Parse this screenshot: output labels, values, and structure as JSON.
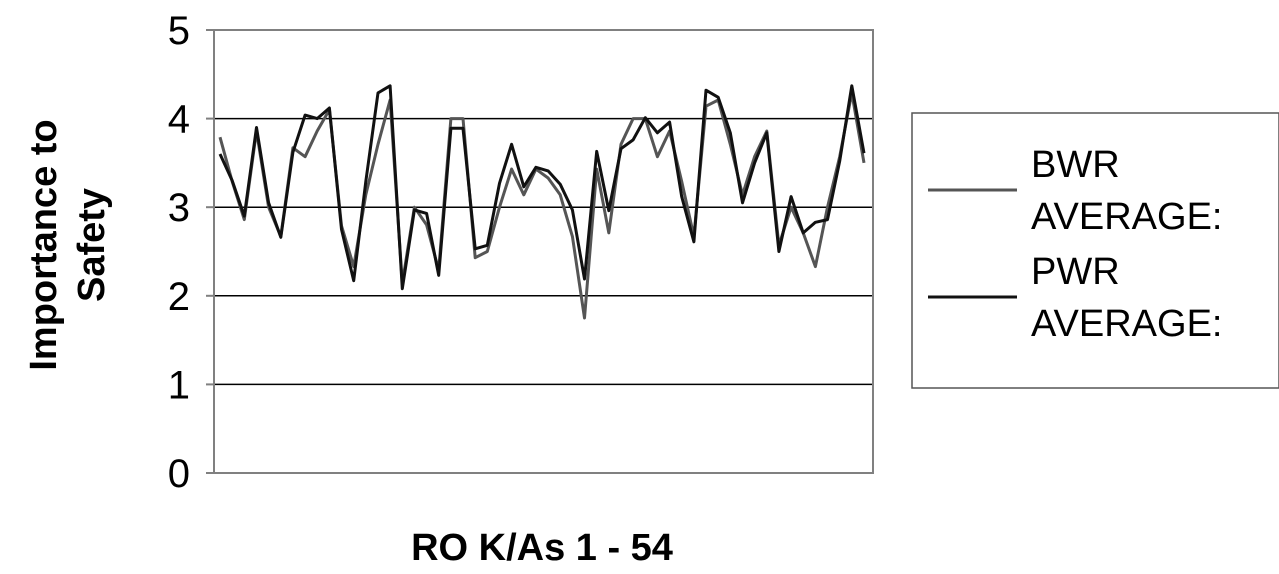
{
  "chart_data": {
    "type": "line",
    "title": "",
    "xlabel": "RO K/As 1 - 54",
    "ylabel_lines": [
      "Importance to",
      "Safety"
    ],
    "ylim": [
      0,
      5
    ],
    "yticks": [
      "0",
      "1",
      "2",
      "3",
      "4",
      "5"
    ],
    "grid": "horizontal",
    "legend_position": "right",
    "series": [
      {
        "name_lines": [
          "BWR",
          "AVERAGE:"
        ],
        "color": "#555555",
        "values": [
          3.79,
          3.29,
          2.86,
          3.86,
          3.0,
          2.67,
          3.67,
          3.57,
          3.86,
          4.1,
          2.79,
          2.33,
          3.14,
          3.71,
          4.21,
          2.14,
          3.0,
          2.8,
          2.29,
          4.0,
          4.0,
          2.43,
          2.5,
          3.0,
          3.43,
          3.14,
          3.43,
          3.33,
          3.14,
          2.67,
          1.75,
          3.43,
          2.71,
          3.71,
          4.0,
          4.0,
          3.57,
          3.86,
          3.29,
          2.67,
          4.14,
          4.21,
          3.71,
          3.14,
          3.57,
          3.86,
          2.57,
          3.0,
          2.71,
          2.33,
          3.0,
          3.57,
          4.29,
          3.5
        ]
      },
      {
        "name_lines": [
          "PWR",
          "AVERAGE:"
        ],
        "color": "#111111",
        "values": [
          3.6,
          3.3,
          2.9,
          3.9,
          3.05,
          2.66,
          3.62,
          4.04,
          4.0,
          4.12,
          2.75,
          2.17,
          3.29,
          4.29,
          4.37,
          2.08,
          2.97,
          2.93,
          2.23,
          3.89,
          3.89,
          2.53,
          2.57,
          3.27,
          3.71,
          3.23,
          3.45,
          3.41,
          3.26,
          2.97,
          2.19,
          3.63,
          2.96,
          3.66,
          3.76,
          4.01,
          3.84,
          3.96,
          3.12,
          2.61,
          4.32,
          4.24,
          3.84,
          3.05,
          3.5,
          3.84,
          2.5,
          3.12,
          2.71,
          2.83,
          2.86,
          3.52,
          4.37,
          3.61
        ]
      }
    ]
  }
}
